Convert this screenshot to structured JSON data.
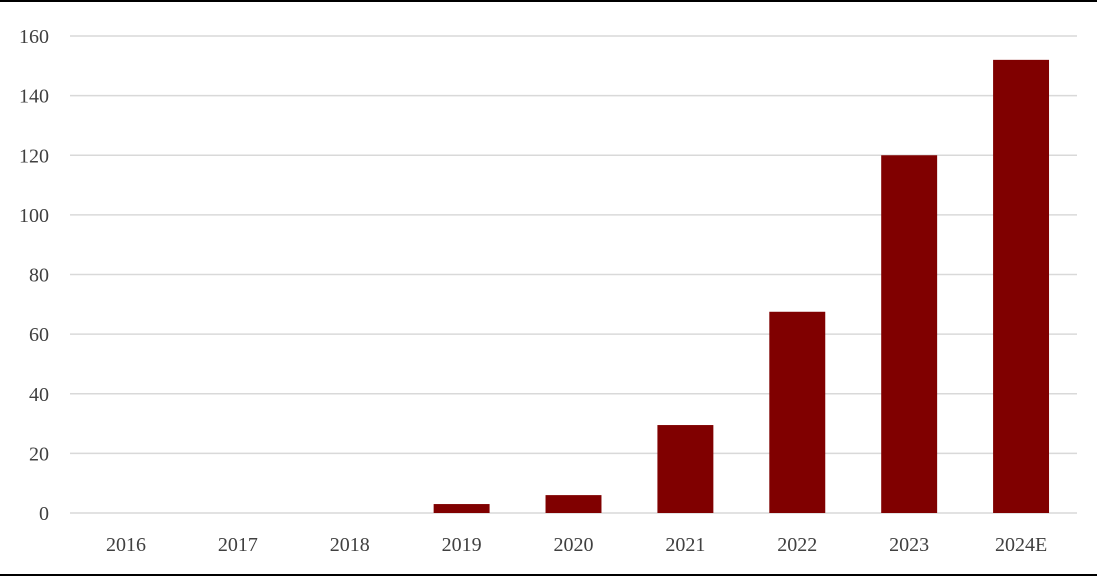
{
  "chart_data": {
    "type": "bar",
    "title": "",
    "xlabel": "",
    "ylabel": "",
    "categories": [
      "2016",
      "2017",
      "2018",
      "2019",
      "2020",
      "2021",
      "2022",
      "2023",
      "2024E"
    ],
    "values": [
      0,
      0,
      0,
      3,
      6,
      29.5,
      67.5,
      120,
      152
    ],
    "ylim": [
      0,
      160
    ],
    "yticks": [
      0,
      20,
      40,
      60,
      80,
      100,
      120,
      140,
      160
    ],
    "grid": true,
    "legend": "none",
    "bar_color": "#800000"
  }
}
